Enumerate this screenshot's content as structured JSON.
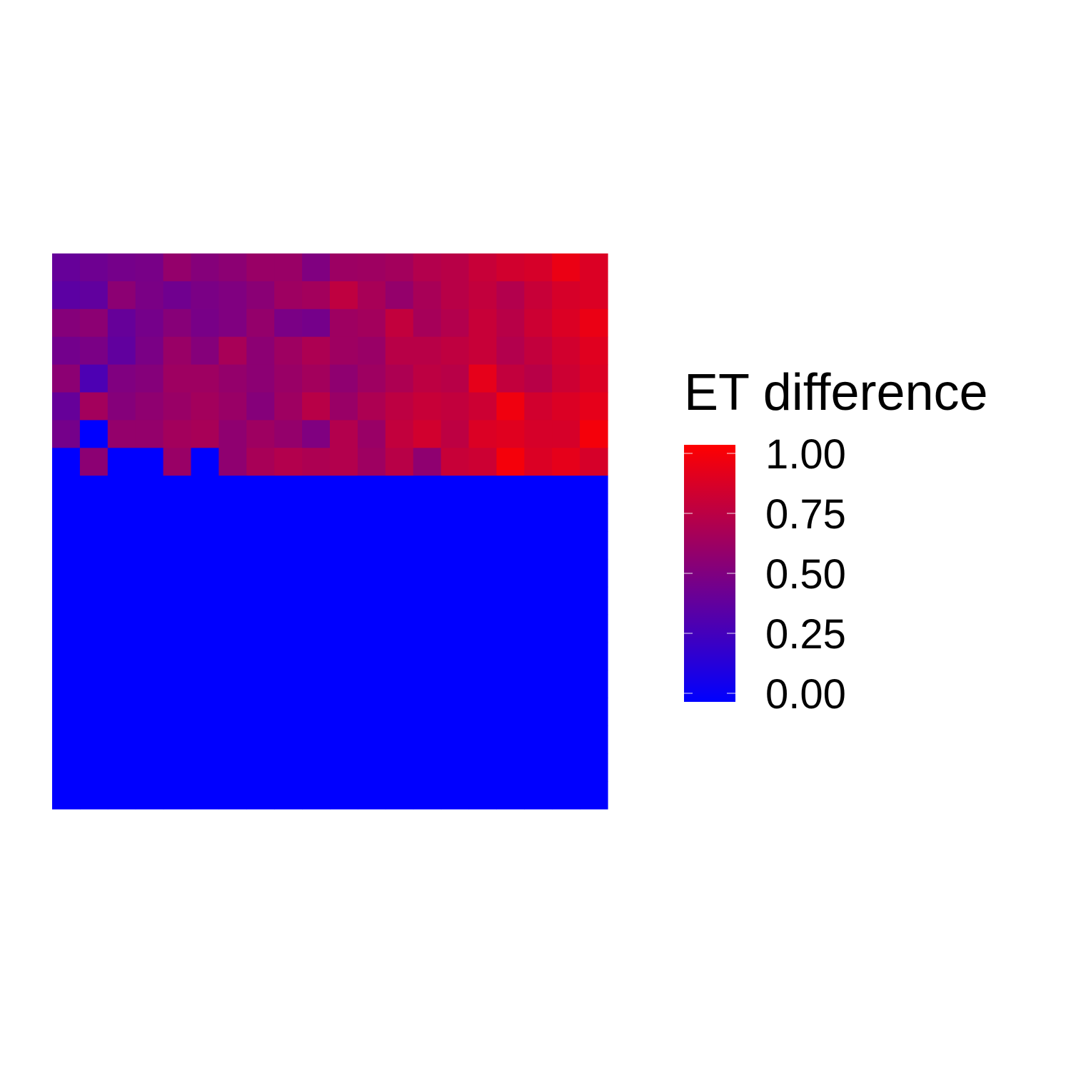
{
  "chart_data": {
    "type": "heatmap",
    "title": "",
    "xlabel": "",
    "ylabel": "",
    "grid": false,
    "axes_visible": false,
    "legend": {
      "title": "ET difference",
      "placement": "right",
      "ticks": [
        "0.00",
        "0.25",
        "0.50",
        "0.75",
        "1.00"
      ],
      "tick_values": [
        0,
        0.25,
        0.5,
        0.75,
        1.0
      ],
      "limits": [
        0,
        1
      ]
    },
    "color_scale": {
      "low": "#0000FF",
      "high": "#FF0000"
    },
    "n_cols": 20,
    "n_rows": 20,
    "values": [
      [
        0.4,
        0.43,
        0.46,
        0.47,
        0.58,
        0.52,
        0.55,
        0.6,
        0.6,
        0.5,
        0.61,
        0.62,
        0.64,
        0.7,
        0.72,
        0.78,
        0.82,
        0.84,
        0.92,
        0.86
      ],
      [
        0.36,
        0.38,
        0.55,
        0.48,
        0.44,
        0.48,
        0.5,
        0.54,
        0.62,
        0.64,
        0.75,
        0.66,
        0.58,
        0.66,
        0.72,
        0.76,
        0.7,
        0.78,
        0.84,
        0.86
      ],
      [
        0.52,
        0.55,
        0.4,
        0.46,
        0.53,
        0.47,
        0.5,
        0.58,
        0.48,
        0.46,
        0.62,
        0.64,
        0.76,
        0.65,
        0.7,
        0.78,
        0.72,
        0.8,
        0.86,
        0.92
      ],
      [
        0.45,
        0.48,
        0.38,
        0.48,
        0.6,
        0.52,
        0.66,
        0.55,
        0.62,
        0.68,
        0.62,
        0.6,
        0.72,
        0.72,
        0.75,
        0.78,
        0.7,
        0.76,
        0.82,
        0.88
      ],
      [
        0.55,
        0.3,
        0.5,
        0.52,
        0.62,
        0.62,
        0.58,
        0.55,
        0.6,
        0.64,
        0.56,
        0.62,
        0.68,
        0.74,
        0.72,
        0.9,
        0.76,
        0.72,
        0.8,
        0.86
      ],
      [
        0.4,
        0.64,
        0.52,
        0.56,
        0.6,
        0.64,
        0.6,
        0.52,
        0.62,
        0.72,
        0.6,
        0.68,
        0.74,
        0.78,
        0.76,
        0.8,
        0.94,
        0.82,
        0.86,
        0.9
      ],
      [
        0.46,
        0.0,
        0.58,
        0.58,
        0.64,
        0.66,
        0.56,
        0.62,
        0.58,
        0.5,
        0.7,
        0.6,
        0.76,
        0.82,
        0.74,
        0.86,
        0.88,
        0.84,
        0.84,
        0.96
      ],
      [
        0.0,
        0.55,
        0.0,
        0.0,
        0.6,
        0.0,
        0.56,
        0.66,
        0.7,
        0.68,
        0.7,
        0.62,
        0.72,
        0.56,
        0.78,
        0.8,
        0.96,
        0.86,
        0.9,
        0.84
      ],
      [
        0.0,
        0.0,
        0.0,
        0.0,
        0.0,
        0.0,
        0.0,
        0.0,
        0.0,
        0.0,
        0.0,
        0.0,
        0.0,
        0.0,
        0.0,
        0.0,
        0.0,
        0.0,
        0.0,
        0.0
      ],
      [
        0.0,
        0.0,
        0.0,
        0.0,
        0.0,
        0.0,
        0.0,
        0.0,
        0.0,
        0.0,
        0.0,
        0.0,
        0.0,
        0.0,
        0.0,
        0.0,
        0.0,
        0.0,
        0.0,
        0.0
      ],
      [
        0.0,
        0.0,
        0.0,
        0.0,
        0.0,
        0.0,
        0.0,
        0.0,
        0.0,
        0.0,
        0.0,
        0.0,
        0.0,
        0.0,
        0.0,
        0.0,
        0.0,
        0.0,
        0.0,
        0.0
      ],
      [
        0.0,
        0.0,
        0.0,
        0.0,
        0.0,
        0.0,
        0.0,
        0.0,
        0.0,
        0.0,
        0.0,
        0.0,
        0.0,
        0.0,
        0.0,
        0.0,
        0.0,
        0.0,
        0.0,
        0.0
      ],
      [
        0.0,
        0.0,
        0.0,
        0.0,
        0.0,
        0.0,
        0.0,
        0.0,
        0.0,
        0.0,
        0.0,
        0.0,
        0.0,
        0.0,
        0.0,
        0.0,
        0.0,
        0.0,
        0.0,
        0.0
      ],
      [
        0.0,
        0.0,
        0.0,
        0.0,
        0.0,
        0.0,
        0.0,
        0.0,
        0.0,
        0.0,
        0.0,
        0.0,
        0.0,
        0.0,
        0.0,
        0.0,
        0.0,
        0.0,
        0.0,
        0.0
      ],
      [
        0.0,
        0.0,
        0.0,
        0.0,
        0.0,
        0.0,
        0.0,
        0.0,
        0.0,
        0.0,
        0.0,
        0.0,
        0.0,
        0.0,
        0.0,
        0.0,
        0.0,
        0.0,
        0.0,
        0.0
      ],
      [
        0.0,
        0.0,
        0.0,
        0.0,
        0.0,
        0.0,
        0.0,
        0.0,
        0.0,
        0.0,
        0.0,
        0.0,
        0.0,
        0.0,
        0.0,
        0.0,
        0.0,
        0.0,
        0.0,
        0.0
      ],
      [
        0.0,
        0.0,
        0.0,
        0.0,
        0.0,
        0.0,
        0.0,
        0.0,
        0.0,
        0.0,
        0.0,
        0.0,
        0.0,
        0.0,
        0.0,
        0.0,
        0.0,
        0.0,
        0.0,
        0.0
      ],
      [
        0.0,
        0.0,
        0.0,
        0.0,
        0.0,
        0.0,
        0.0,
        0.0,
        0.0,
        0.0,
        0.0,
        0.0,
        0.0,
        0.0,
        0.0,
        0.0,
        0.0,
        0.0,
        0.0,
        0.0
      ],
      [
        0.0,
        0.0,
        0.0,
        0.0,
        0.0,
        0.0,
        0.0,
        0.0,
        0.0,
        0.0,
        0.0,
        0.0,
        0.0,
        0.0,
        0.0,
        0.0,
        0.0,
        0.0,
        0.0,
        0.0
      ],
      [
        0.0,
        0.0,
        0.0,
        0.0,
        0.0,
        0.0,
        0.0,
        0.0,
        0.0,
        0.0,
        0.0,
        0.0,
        0.0,
        0.0,
        0.0,
        0.0,
        0.0,
        0.0,
        0.0,
        0.0
      ]
    ]
  }
}
